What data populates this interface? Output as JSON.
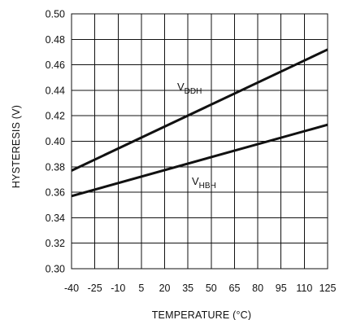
{
  "chart_data": {
    "type": "line",
    "xlabel": "TEMPERATURE (°C)",
    "ylabel": "HYSTERESIS (V)",
    "x_ticks": [
      -40,
      -25,
      -10,
      5,
      20,
      35,
      50,
      65,
      80,
      95,
      110,
      125
    ],
    "y_ticks": [
      "0.30",
      "0.32",
      "0.34",
      "0.36",
      "0.38",
      "0.40",
      "0.42",
      "0.44",
      "0.46",
      "0.48",
      "0.50"
    ],
    "xlim": [
      -40,
      125
    ],
    "ylim": [
      0.3,
      0.5
    ],
    "grid": true,
    "series": [
      {
        "name": "VDDH",
        "main": "V",
        "sub": "DDH",
        "x": [
          -40,
          125
        ],
        "y": [
          0.377,
          0.472
        ]
      },
      {
        "name": "VHBH",
        "main": "V",
        "sub": "HBH",
        "x": [
          -40,
          125
        ],
        "y": [
          0.357,
          0.413
        ]
      }
    ]
  }
}
